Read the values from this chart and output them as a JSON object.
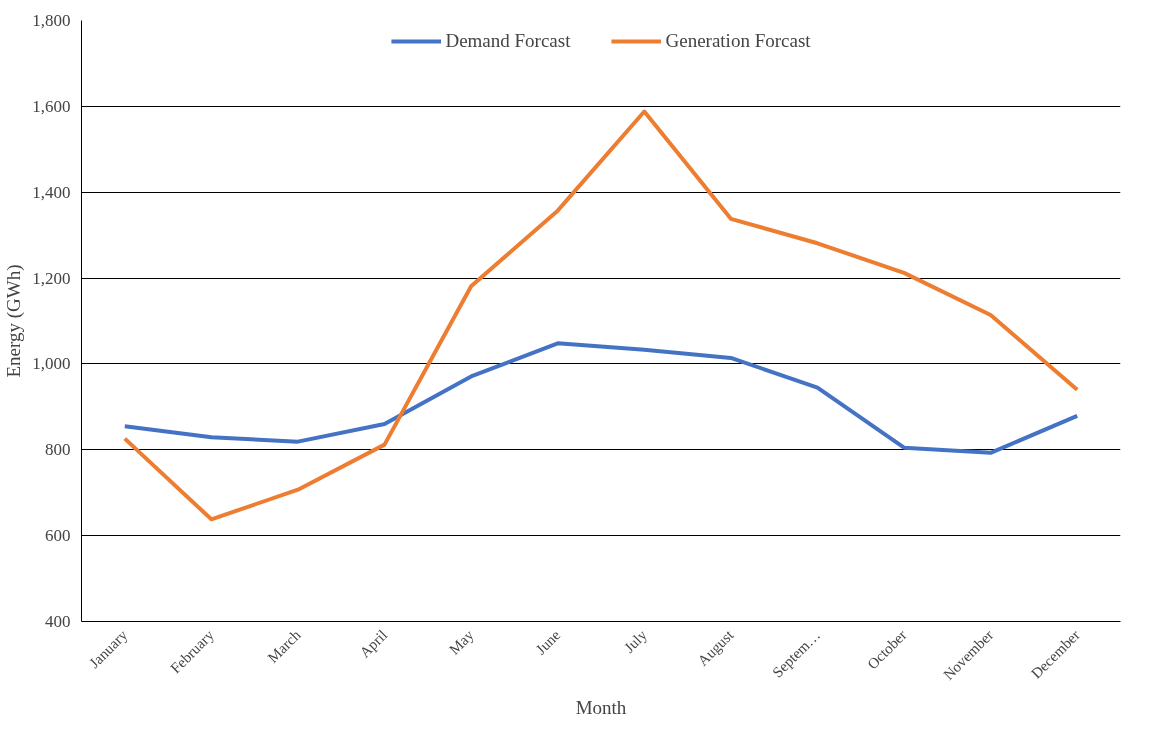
{
  "chart_data": {
    "type": "line",
    "xlabel": "Month",
    "ylabel": "Energy (GWh)",
    "categories": [
      "January",
      "February",
      "March",
      "April",
      "May",
      "June",
      "July",
      "August",
      "Septem…",
      "October",
      "November",
      "December"
    ],
    "series": [
      {
        "name": "Demand Forcast",
        "color": "#4472c4",
        "values": [
          855,
          829,
          819,
          860,
          971,
          1048,
          1033,
          1014,
          945,
          805,
          793,
          879
        ]
      },
      {
        "name": "Generation Forcast",
        "color": "#ed7d31",
        "values": [
          826,
          638,
          707,
          812,
          1181,
          1357,
          1588,
          1338,
          1281,
          1212,
          1114,
          940
        ]
      }
    ],
    "ylim": [
      400,
      1800
    ],
    "yticks": [
      {
        "value": 400,
        "label": "400"
      },
      {
        "value": 600,
        "label": "600"
      },
      {
        "value": 800,
        "label": "800"
      },
      {
        "value": 1000,
        "label": "1,000"
      },
      {
        "value": 1200,
        "label": "1,200"
      },
      {
        "value": 1400,
        "label": "1,400"
      },
      {
        "value": 1600,
        "label": "1,600"
      },
      {
        "value": 1800,
        "label": "1,800"
      }
    ],
    "grid": "y",
    "legend": "top",
    "marker": "none",
    "line_style": "solid"
  }
}
